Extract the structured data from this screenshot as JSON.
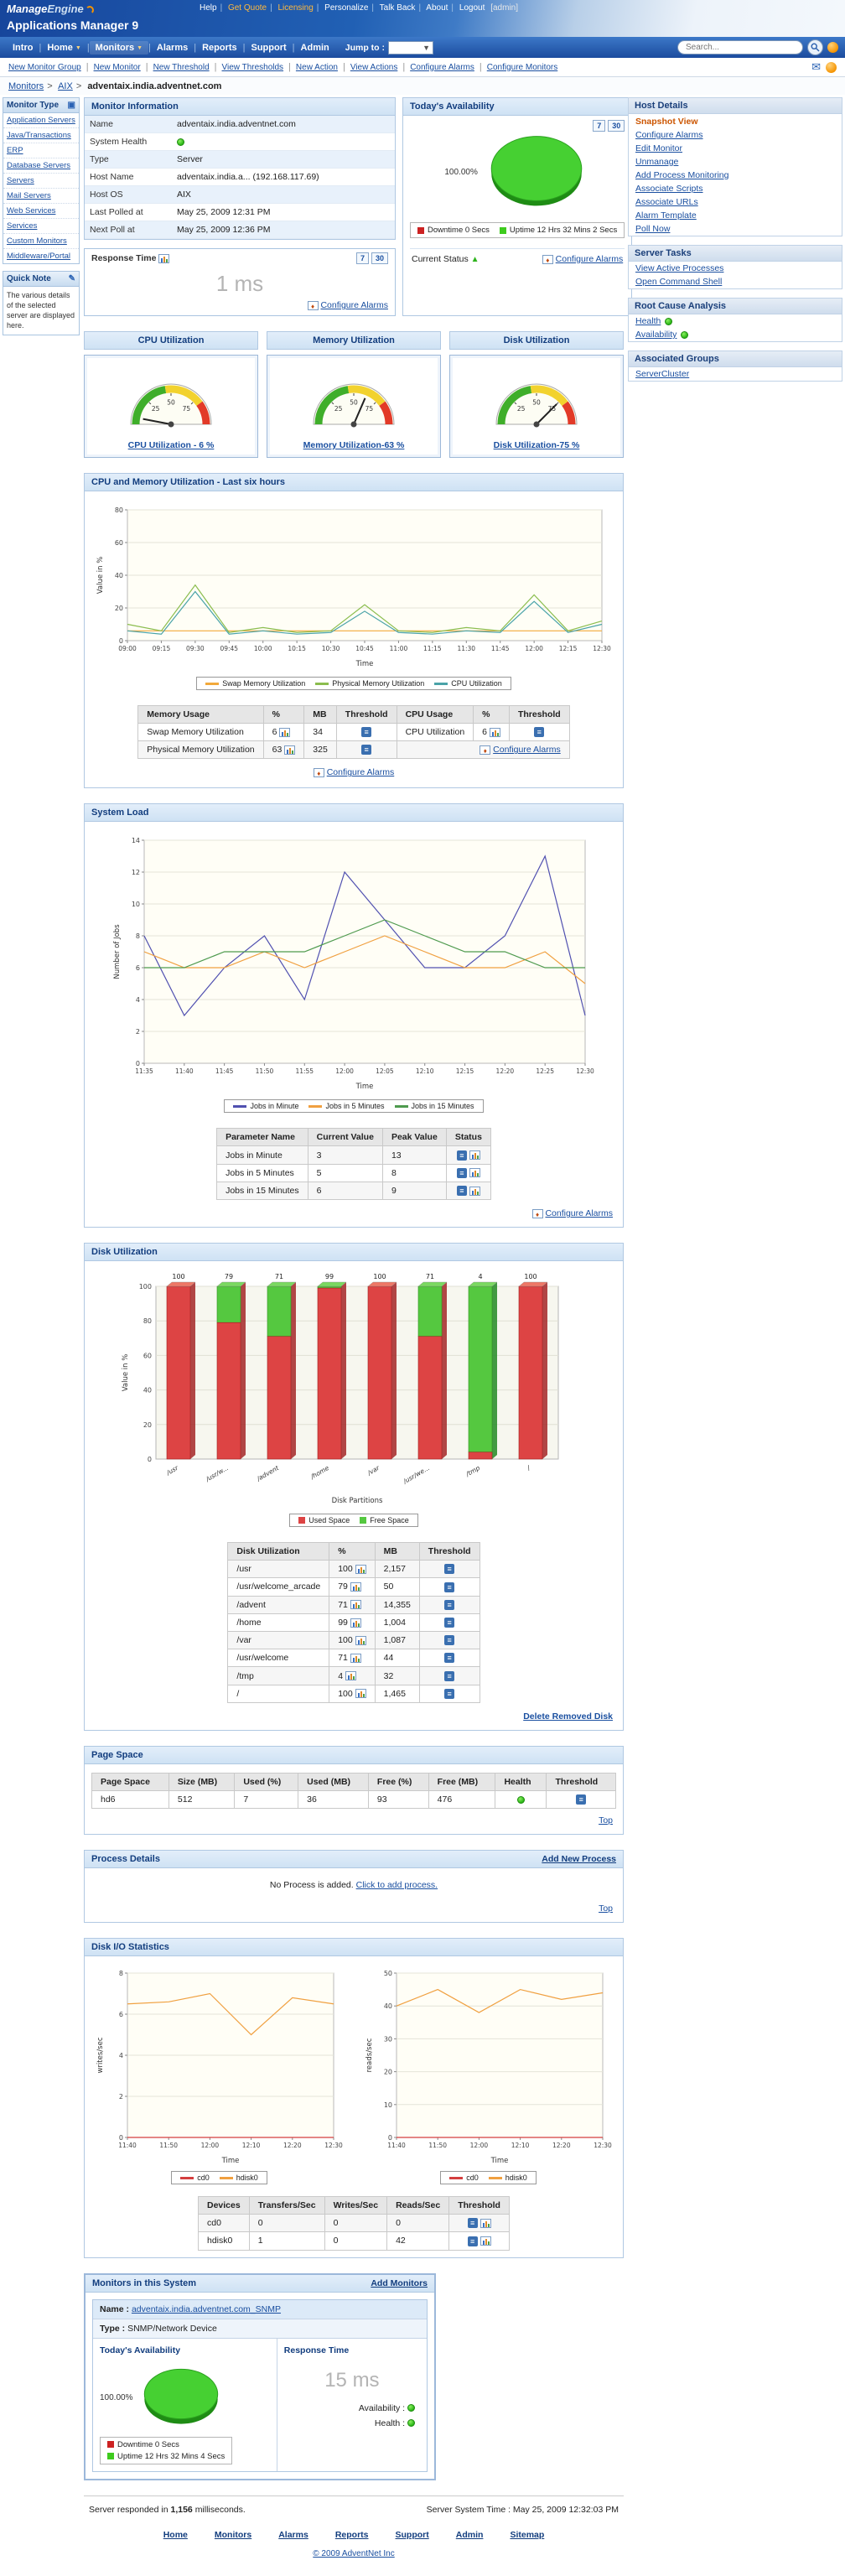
{
  "topbar": {
    "links": [
      "Help",
      "Get Quote",
      "Licensing",
      "Personalize",
      "Talk Back",
      "About",
      "Logout"
    ],
    "admin_label": "[admin]"
  },
  "branding": {
    "logo_part1": "Manage",
    "logo_part2": "Engine",
    "product_title": "Applications Manager 9"
  },
  "nav": {
    "items": [
      "Intro",
      "Home",
      "Monitors",
      "Alarms",
      "Reports",
      "Support",
      "Admin"
    ],
    "jump_to_label": "Jump to :",
    "search_placeholder": "Search..."
  },
  "subnav": [
    "New Monitor Group",
    "New Monitor",
    "New Threshold",
    "View Thresholds",
    "New Action",
    "View Actions",
    "Configure Alarms",
    "Configure Monitors"
  ],
  "breadcrumb": {
    "links": [
      "Monitors",
      "AIX"
    ],
    "current": "adventaix.india.adventnet.com"
  },
  "icons": {
    "mail": "✉",
    "dropdown_arrow": "▼",
    "monitor": "▣",
    "note": "✎"
  },
  "left_sidebar": {
    "monitor_type_title": "Monitor Type",
    "items": [
      "Application Servers",
      "Java/Transactions",
      "ERP",
      "Database Servers",
      "Servers",
      "Mail Servers",
      "Web Services",
      "Services",
      "Custom Monitors",
      "Middleware/Portal"
    ],
    "quick_note_title": "Quick Note",
    "quick_note_text": "The various details of the selected server are displayed here."
  },
  "right_sidebar": {
    "host_details": {
      "title": "Host Details",
      "active": "Snapshot View",
      "links": [
        "Configure Alarms",
        "Edit Monitor",
        "Unmanage",
        "Add Process Monitoring",
        "Associate Scripts",
        "Associate URLs",
        "Alarm Template",
        "Poll Now"
      ]
    },
    "server_tasks": {
      "title": "Server Tasks",
      "links": [
        "View Active Processes",
        "Open Command Shell"
      ]
    },
    "root_cause": {
      "title": "Root Cause Analysis",
      "links": [
        "Health",
        "Availability"
      ]
    },
    "associated_groups": {
      "title": "Associated Groups",
      "links": [
        "ServerCluster"
      ]
    }
  },
  "monitor_info": {
    "title": "Monitor Information",
    "rows": [
      {
        "label": "Name",
        "value": "adventaix.india.adventnet.com"
      },
      {
        "label": "System Health",
        "value": ""
      },
      {
        "label": "Type",
        "value": "Server"
      },
      {
        "label": "Host Name",
        "value": "adventaix.india.a... (192.168.117.69)"
      },
      {
        "label": "Host OS",
        "value": "AIX"
      },
      {
        "label": "Last Polled at",
        "value": "May 25, 2009 12:31 PM"
      },
      {
        "label": "Next Poll at",
        "value": "May 25, 2009 12:36 PM"
      }
    ]
  },
  "availability": {
    "title": "Today's Availability",
    "day7": "7",
    "day30": "30",
    "percent": "100.00%",
    "legend": [
      {
        "label": "Downtime 0 Secs",
        "color": "#cc2222"
      },
      {
        "label": "Uptime 12 Hrs 32 Mins 2 Secs",
        "color": "#3ecb1e"
      }
    ],
    "current_status_label": "Current Status",
    "configure_alarms": "Configure Alarms"
  },
  "response_time": {
    "title": "Response Time",
    "day7": "7",
    "day30": "30",
    "value": "1 ms",
    "configure_alarms": "Configure Alarms"
  },
  "gauges": {
    "headers": [
      "CPU Utilization",
      "Memory Utilization",
      "Disk Utilization"
    ],
    "ticks": [
      25,
      50,
      75
    ],
    "items": [
      {
        "label": "CPU Utilization - 6 %",
        "value": 6
      },
      {
        "label": "Memory Utilization-63 %",
        "value": 63
      },
      {
        "label": "Disk Utilization-75 %",
        "value": 75
      }
    ]
  },
  "cpu_mem_table": {
    "headers": [
      "Memory Usage",
      "%",
      "MB",
      "Threshold",
      "CPU Usage",
      "%",
      "Threshold"
    ],
    "rows": [
      {
        "mem_name": "Swap Memory Utilization",
        "mem_pct": "6",
        "mem_mb": "34",
        "cpu_name": "CPU Utilization",
        "cpu_pct": "6"
      },
      {
        "mem_name": "Physical Memory Utilization",
        "mem_pct": "63",
        "mem_mb": "325"
      }
    ],
    "configure_alarms": "Configure Alarms"
  },
  "system_load": {
    "title": "System Load",
    "table": {
      "headers": [
        "Parameter Name",
        "Current Value",
        "Peak Value",
        "Status"
      ],
      "rows": [
        {
          "name": "Jobs in Minute",
          "current": "3",
          "peak": "13"
        },
        {
          "name": "Jobs in 5 Minutes",
          "current": "5",
          "peak": "8"
        },
        {
          "name": "Jobs in 15 Minutes",
          "current": "6",
          "peak": "9"
        }
      ]
    },
    "configure_alarms": "Configure Alarms"
  },
  "disk_section": {
    "title": "Disk Utilization",
    "table": {
      "headers": [
        "Disk Utilization",
        "%",
        "MB",
        "Threshold"
      ],
      "rows": [
        {
          "name": "/usr",
          "pct": "100",
          "mb": "2,157"
        },
        {
          "name": "/usr/welcome_arcade",
          "pct": "79",
          "mb": "50"
        },
        {
          "name": "/advent",
          "pct": "71",
          "mb": "14,355"
        },
        {
          "name": "/home",
          "pct": "99",
          "mb": "1,004"
        },
        {
          "name": "/var",
          "pct": "100",
          "mb": "1,087"
        },
        {
          "name": "/usr/welcome",
          "pct": "71",
          "mb": "44"
        },
        {
          "name": "/tmp",
          "pct": "4",
          "mb": "32"
        },
        {
          "name": "/",
          "pct": "100",
          "mb": "1,465"
        }
      ]
    },
    "delete_link": "Delete Removed Disk"
  },
  "page_space": {
    "title": "Page Space",
    "headers": [
      "Page Space",
      "Size (MB)",
      "Used (%)",
      "Used (MB)",
      "Free (%)",
      "Free (MB)",
      "Health",
      "Threshold"
    ],
    "rows": [
      {
        "name": "hd6",
        "size": "512",
        "used_pct": "7",
        "used_mb": "36",
        "free_pct": "93",
        "free_mb": "476"
      }
    ],
    "top_link": "Top"
  },
  "process_details": {
    "title": "Process Details",
    "add_link": "Add New Process",
    "empty_text": "No Process is added.",
    "empty_link": "Click to add process.",
    "top_link": "Top"
  },
  "disk_io": {
    "title": "Disk I/O Statistics",
    "table": {
      "headers": [
        "Devices",
        "Transfers/Sec",
        "Writes/Sec",
        "Reads/Sec",
        "Threshold"
      ],
      "rows": [
        {
          "device": "cd0",
          "transfers": "0",
          "writes": "0",
          "reads": "0"
        },
        {
          "device": "hdisk0",
          "transfers": "1",
          "writes": "0",
          "reads": "42"
        }
      ]
    }
  },
  "monitors_system": {
    "title": "Monitors in this System",
    "add_link": "Add Monitors",
    "name_label": "Name :",
    "name_value": "adventaix.india.adventnet.com_SNMP",
    "type_label": "Type :",
    "type_value": "SNMP/Network Device",
    "availability_title": "Today's Availability",
    "availability_percent": "100.00%",
    "legend": [
      {
        "label": "Downtime 0 Secs",
        "color": "#cc2222"
      },
      {
        "label": "Uptime 12 Hrs 32 Mins 4 Secs",
        "color": "#3ecb1e"
      }
    ],
    "response_title": "Response Time",
    "response_value": "15 ms",
    "availability_label": "Availability :",
    "health_label": "Health :"
  },
  "footer": {
    "responded_prefix": "Server responded in",
    "responded_value": "1,156",
    "responded_suffix": "milliseconds.",
    "server_time": "Server System Time : May 25, 2009 12:32:03 PM",
    "links": [
      "Home",
      "Monitors",
      "Alarms",
      "Reports",
      "Support",
      "Admin",
      "Sitemap"
    ],
    "copyright": "© 2009 AdventNet Inc"
  },
  "status_colors": {
    "up_green": "#2db31c",
    "down_red": "#cc2222",
    "used_red": "#dd4444",
    "free_green": "#55c840"
  },
  "chart_data": [
    {
      "id": "cpu_mem",
      "type": "line",
      "title": "CPU and Memory Utilization - Last six hours",
      "xlabel": "Time",
      "ylabel": "Value in %",
      "ylim": [
        0,
        80
      ],
      "yticks": [
        0,
        20,
        40,
        60,
        80
      ],
      "x": [
        "09:00",
        "09:15",
        "09:30",
        "09:45",
        "10:00",
        "10:15",
        "10:30",
        "10:45",
        "11:00",
        "11:15",
        "11:30",
        "11:45",
        "12:00",
        "12:15",
        "12:30"
      ],
      "series": [
        {
          "name": "Swap Memory Utilization",
          "color": "#f2a93b",
          "values": [
            6,
            6,
            6,
            6,
            6,
            6,
            6,
            6,
            6,
            6,
            6,
            6,
            6,
            6,
            6
          ]
        },
        {
          "name": "Physical Memory Utilization",
          "color": "#8bbd4e",
          "values": [
            10,
            6,
            34,
            5,
            8,
            5,
            6,
            22,
            6,
            5,
            8,
            6,
            28,
            6,
            12
          ]
        },
        {
          "name": "CPU Utilization",
          "color": "#4aa3a8",
          "values": [
            6,
            4,
            30,
            4,
            6,
            4,
            5,
            18,
            5,
            4,
            6,
            5,
            24,
            5,
            10
          ]
        }
      ]
    },
    {
      "id": "system_load",
      "type": "line",
      "title": "System Load",
      "xlabel": "Time",
      "ylabel": "Number of Jobs",
      "ylim": [
        0,
        14
      ],
      "yticks": [
        0,
        2,
        4,
        6,
        8,
        10,
        12,
        14
      ],
      "x": [
        "11:35",
        "11:40",
        "11:45",
        "11:50",
        "11:55",
        "12:00",
        "12:05",
        "12:10",
        "12:15",
        "12:20",
        "12:25",
        "12:30"
      ],
      "series": [
        {
          "name": "Jobs in Minute",
          "color": "#5050b0",
          "values": [
            8,
            3,
            6,
            8,
            4,
            12,
            9,
            6,
            6,
            8,
            13,
            3
          ]
        },
        {
          "name": "Jobs in 5 Minutes",
          "color": "#f0a040",
          "values": [
            7,
            6,
            6,
            7,
            6,
            7,
            8,
            7,
            6,
            6,
            7,
            5
          ]
        },
        {
          "name": "Jobs in 15 Minutes",
          "color": "#4e9a4e",
          "values": [
            6,
            6,
            7,
            7,
            7,
            8,
            9,
            8,
            7,
            7,
            6,
            6
          ]
        }
      ]
    },
    {
      "id": "disk_util",
      "type": "bar",
      "title": "Disk Utilization",
      "xlabel": "Disk Partitions",
      "ylabel": "Value in %",
      "ylim": [
        0,
        100
      ],
      "yticks": [
        0,
        20,
        40,
        60,
        80,
        100
      ],
      "categories": [
        "/usr",
        "/usr/w...",
        "/advent",
        "/home",
        "/var",
        "/usr/we...",
        "/tmp",
        "/"
      ],
      "used": [
        100,
        79,
        71,
        99,
        100,
        71,
        4,
        100
      ],
      "legend": [
        {
          "name": "Used Space",
          "color": "#dd4444"
        },
        {
          "name": "Free Space",
          "color": "#55c840"
        }
      ]
    },
    {
      "id": "disk_writes",
      "type": "line",
      "title": "Disk Writes",
      "xlabel": "Time",
      "ylabel": "writes/sec",
      "ylim": [
        0,
        8
      ],
      "yticks": [
        0,
        2,
        4,
        6,
        8
      ],
      "x": [
        "11:40",
        "11:50",
        "12:00",
        "12:10",
        "12:20",
        "12:30"
      ],
      "series": [
        {
          "name": "cd0",
          "color": "#d43f3f",
          "values": [
            0,
            0,
            0,
            0,
            0,
            0
          ]
        },
        {
          "name": "hdisk0",
          "color": "#f0a040",
          "values": [
            6.5,
            6.6,
            7,
            5,
            6.8,
            6.5
          ]
        }
      ]
    },
    {
      "id": "disk_reads",
      "type": "line",
      "title": "Disk Reads",
      "xlabel": "Time",
      "ylabel": "reads/sec",
      "ylim": [
        0,
        50
      ],
      "yticks": [
        0,
        10,
        20,
        30,
        40,
        50
      ],
      "x": [
        "11:40",
        "11:50",
        "12:00",
        "12:10",
        "12:20",
        "12:30"
      ],
      "series": [
        {
          "name": "cd0",
          "color": "#d43f3f",
          "values": [
            0,
            0,
            0,
            0,
            0,
            0
          ]
        },
        {
          "name": "hdisk0",
          "color": "#f0a040",
          "values": [
            40,
            45,
            38,
            45,
            42,
            44
          ]
        }
      ]
    }
  ]
}
